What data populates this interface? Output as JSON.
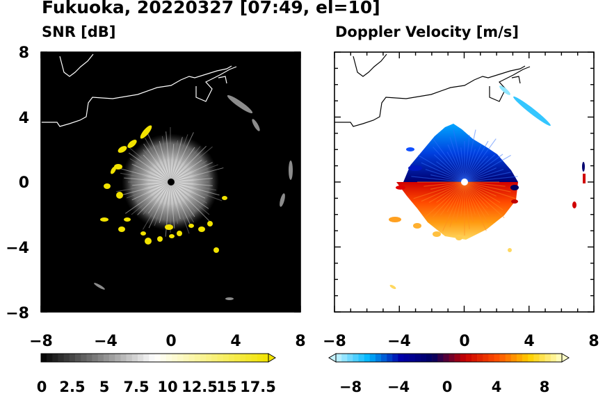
{
  "title": "Fukuoka, 20220327 [07:49, el=10]",
  "chart_data": [
    {
      "type": "heatmap",
      "title": "SNR [dB]",
      "xlim": [
        -8,
        8
      ],
      "ylim": [
        -8,
        8
      ],
      "x_ticks": [
        "−8",
        "−4",
        "0",
        "4",
        "8"
      ],
      "y_ticks": [
        "8",
        "4",
        "0",
        "−4",
        "−8"
      ],
      "background": "#000000",
      "colorbar": {
        "tick_labels": [
          "0",
          "2.5",
          "5",
          "7.5",
          "10",
          "12.5",
          "15",
          "17.5"
        ],
        "range": [
          0,
          20
        ],
        "colors": [
          "#000000",
          "#ffffff",
          "#f2e300"
        ],
        "extend": "max"
      }
    },
    {
      "type": "heatmap",
      "title": "Doppler Velocity [m/s]",
      "xlim": [
        -8,
        8
      ],
      "ylim": [
        -8,
        8
      ],
      "x_ticks": [
        "−8",
        "−4",
        "0",
        "4",
        "8"
      ],
      "y_ticks": [
        "8",
        "4",
        "0",
        "−4",
        "−8"
      ],
      "background": "#ffffff",
      "colorbar": {
        "tick_labels": [
          "−8",
          "−4",
          "0",
          "4",
          "8"
        ],
        "range": [
          -10,
          10
        ],
        "colors": [
          "#c8f4ff",
          "#00b7ff",
          "#0000aa",
          "#000060",
          "#c80000",
          "#ff5000",
          "#ffd000",
          "#ffffc8"
        ],
        "extend": "both"
      }
    }
  ]
}
